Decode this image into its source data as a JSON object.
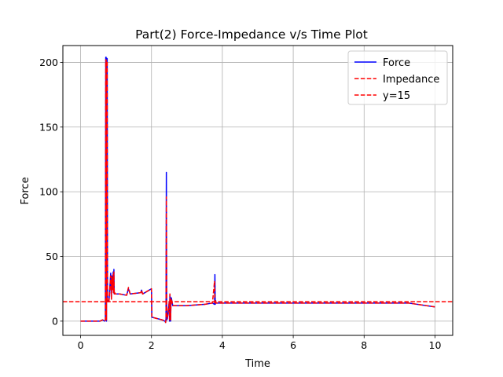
{
  "chart_data": {
    "type": "line",
    "title": "Part(2) Force-Impedance v/s Time Plot",
    "xlabel": "Time",
    "ylabel": "Force",
    "xlim": [
      -0.5,
      10.5
    ],
    "ylim": [
      -11,
      213
    ],
    "xticks": [
      0,
      2,
      4,
      6,
      8,
      10
    ],
    "yticks": [
      0,
      50,
      100,
      150,
      200
    ],
    "grid": true,
    "legend_position": "top-right",
    "series": [
      {
        "name": "Force",
        "color": "#0000ff",
        "style": "solid",
        "x": [
          0,
          0.55,
          0.62,
          0.68,
          0.7,
          0.71,
          0.72,
          0.73,
          0.74,
          0.75,
          0.76,
          0.78,
          0.8,
          0.85,
          0.87,
          0.88,
          0.9,
          0.92,
          0.93,
          0.94,
          0.95,
          0.96,
          0.98,
          1.0,
          1.1,
          1.3,
          1.35,
          1.4,
          1.7,
          1.72,
          1.75,
          2.0,
          2.01,
          2.02,
          2.3,
          2.38,
          2.4,
          2.41,
          2.42,
          2.43,
          2.45,
          2.5,
          2.51,
          2.52,
          2.53,
          2.54,
          2.55,
          2.56,
          2.6,
          3.0,
          3.5,
          3.72,
          3.78,
          3.79,
          3.8,
          3.81,
          3.82,
          3.85,
          3.9,
          4.0,
          5.0,
          6.0,
          7.0,
          8.0,
          9.0,
          9.25,
          10.0
        ],
        "y": [
          0,
          0,
          1,
          0,
          1,
          204,
          204,
          0,
          203,
          203,
          15,
          16,
          15,
          37,
          17,
          35,
          25,
          38,
          22,
          40,
          21,
          22,
          21,
          21,
          21,
          20,
          25,
          21,
          22,
          24,
          21,
          25,
          3,
          3,
          1,
          0,
          -1,
          2,
          115,
          1,
          2,
          15,
          0,
          20,
          18,
          0,
          15,
          18,
          12,
          12,
          13,
          14,
          13,
          36,
          13,
          16,
          14,
          14,
          14,
          14,
          14,
          14,
          14,
          14,
          14,
          14,
          11
        ]
      },
      {
        "name": "Impedance",
        "color": "#ff0000",
        "style": "dashed",
        "x": [
          0,
          0.55,
          0.62,
          0.68,
          0.7,
          0.71,
          0.72,
          0.73,
          0.74,
          0.75,
          0.76,
          0.78,
          0.8,
          0.85,
          0.87,
          0.88,
          0.9,
          0.92,
          0.93,
          0.94,
          0.95,
          0.96,
          0.98,
          1.0,
          1.1,
          1.3,
          1.35,
          1.4,
          1.7,
          1.72,
          1.75,
          2.0,
          2.01,
          2.02,
          2.3,
          2.38,
          2.4,
          2.41,
          2.42,
          2.43,
          2.45,
          2.5,
          2.51,
          2.52,
          2.53,
          2.54,
          2.55,
          2.56,
          2.6,
          3.0,
          3.5,
          3.72,
          3.78,
          3.79,
          3.8,
          3.81,
          3.82,
          3.85,
          3.9,
          4.0,
          5.0,
          6.0,
          7.0,
          8.0,
          9.0,
          9.25,
          10.0
        ],
        "y": [
          0,
          0,
          1,
          0,
          1,
          202,
          202,
          1,
          201,
          201,
          15,
          16,
          15,
          35,
          17,
          34,
          24,
          36,
          22,
          38,
          21,
          22,
          21,
          21,
          21,
          20,
          26,
          21,
          22,
          24,
          21,
          25,
          3,
          3,
          1,
          0,
          -1,
          2,
          96,
          2,
          3,
          14,
          1,
          21,
          18,
          1,
          15,
          17,
          12,
          12,
          13,
          14,
          31,
          14,
          15,
          16,
          14,
          14,
          14,
          14,
          14,
          14,
          14,
          14,
          14,
          14,
          11
        ]
      },
      {
        "name": "y=15",
        "color": "#ff0000",
        "style": "dashed",
        "y_constant": 15
      }
    ]
  }
}
